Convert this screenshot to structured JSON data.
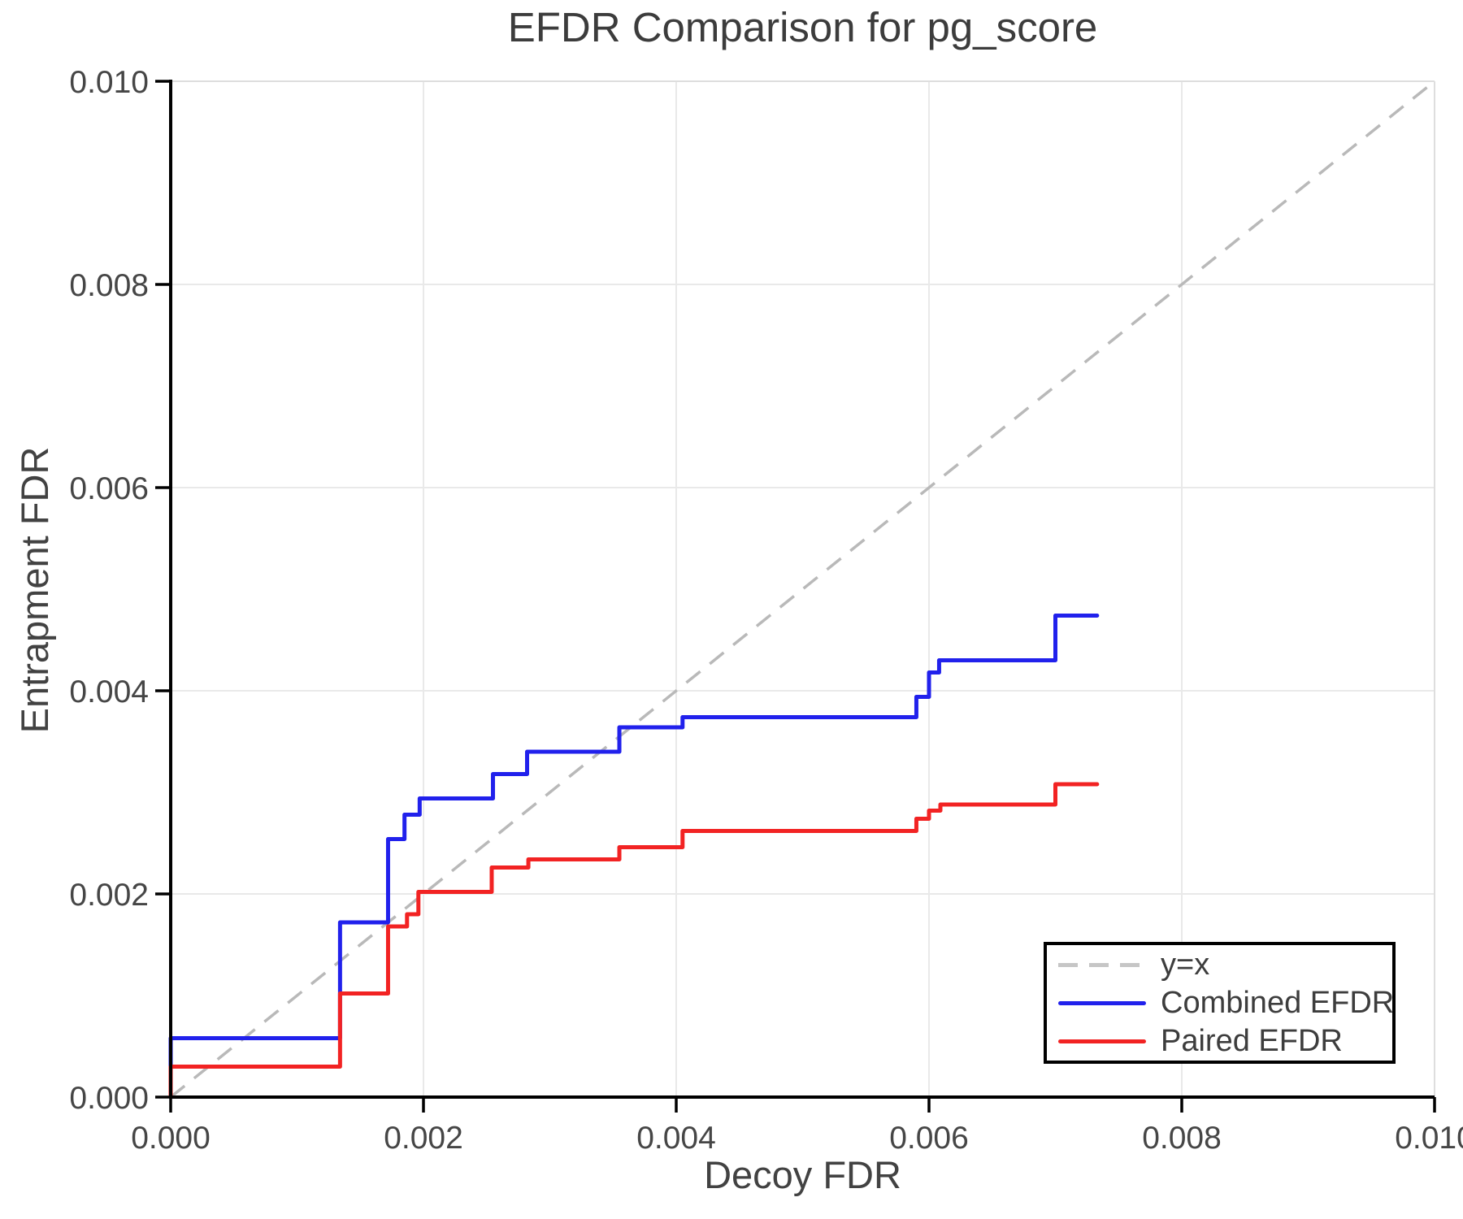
{
  "title": "EFDR Comparison for pg_score",
  "chart_data": {
    "type": "line",
    "subtype": "step",
    "title": "EFDR Comparison for pg_score",
    "xlabel": "Decoy FDR",
    "ylabel": "Entrapment FDR",
    "xlim": [
      0.0,
      0.01
    ],
    "ylim": [
      0.0,
      0.01
    ],
    "x_ticks": [
      0.0,
      0.002,
      0.004,
      0.006,
      0.008,
      0.01
    ],
    "x_tick_labels": [
      "0.000",
      "0.002",
      "0.004",
      "0.006",
      "0.008",
      "0.010"
    ],
    "y_ticks": [
      0.0,
      0.002,
      0.004,
      0.006,
      0.008,
      0.01
    ],
    "y_tick_labels": [
      "0.000",
      "0.002",
      "0.004",
      "0.006",
      "0.008",
      "0.010"
    ],
    "grid": true,
    "grid_color": "#e9e9e9",
    "frame_color": "#dedede",
    "spine_color": "#000000",
    "tick_label_color": "#464646",
    "reference_line": {
      "label": "y=x",
      "from": [
        0.0,
        0.0
      ],
      "to": [
        0.01,
        0.01
      ],
      "style": "dashed",
      "color": "#b9b9b9"
    },
    "series": [
      {
        "name": "Combined EFDR",
        "color": "#2121ec",
        "start": [
          0.0,
          0.0
        ],
        "steps": [
          [
            0.0,
            0.00058
          ],
          [
            0.00134,
            0.00172
          ],
          [
            0.00172,
            0.00254
          ],
          [
            0.00185,
            0.00278
          ],
          [
            0.00197,
            0.00294
          ],
          [
            0.00255,
            0.00318
          ],
          [
            0.00282,
            0.0034
          ],
          [
            0.00355,
            0.00364
          ],
          [
            0.00405,
            0.00374
          ],
          [
            0.0059,
            0.00394
          ],
          [
            0.006,
            0.00418
          ],
          [
            0.00608,
            0.0043
          ],
          [
            0.007,
            0.00474
          ]
        ],
        "end_x": 0.00733
      },
      {
        "name": "Paired EFDR",
        "color": "#f22323",
        "start": [
          0.0,
          0.0
        ],
        "steps": [
          [
            0.0,
            0.0003
          ],
          [
            0.00134,
            0.00102
          ],
          [
            0.00172,
            0.00168
          ],
          [
            0.00187,
            0.0018
          ],
          [
            0.00196,
            0.00202
          ],
          [
            0.00254,
            0.00226
          ],
          [
            0.00283,
            0.00234
          ],
          [
            0.00355,
            0.00246
          ],
          [
            0.00405,
            0.00262
          ],
          [
            0.0059,
            0.00274
          ],
          [
            0.006,
            0.00282
          ],
          [
            0.00609,
            0.00288
          ],
          [
            0.007,
            0.00308
          ]
        ],
        "end_x": 0.00733
      }
    ],
    "legend_position": "lower right"
  },
  "legend": {
    "items": [
      {
        "label": "y=x",
        "color": "#c6c6c6",
        "dashed": true
      },
      {
        "label": "Combined EFDR",
        "color": "#2121ec",
        "dashed": false
      },
      {
        "label": "Paired EFDR",
        "color": "#f22323",
        "dashed": false
      }
    ]
  }
}
